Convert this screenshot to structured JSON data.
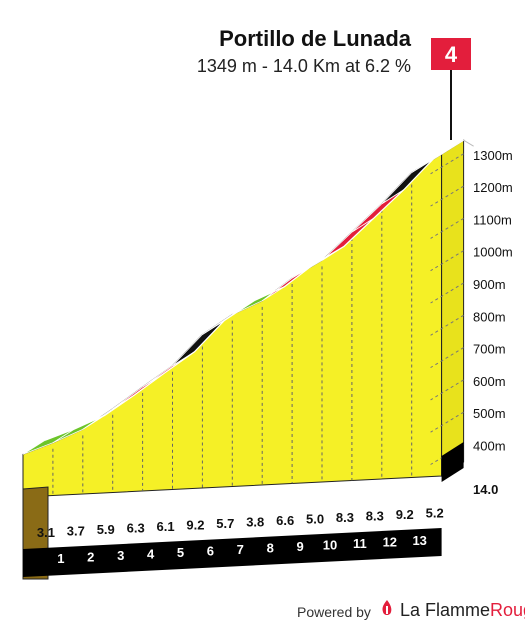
{
  "title": "Portillo de Lunada",
  "subtitle": "1349 m - 14.0 Km at 6.2 %",
  "climb_category": "4",
  "footer": {
    "powered_label": "Powered by",
    "brand_prefix": "La Flamme",
    "brand_suffix": "Rouge"
  },
  "colors": {
    "fill": "#f5f026",
    "base": "#000000",
    "cliff": "#8a6b16",
    "green": "#6cc52a",
    "blue": "#1f5d8c",
    "red": "#e31e3c",
    "black": "#111111"
  },
  "chart_data": {
    "type": "area",
    "title": "Portillo de Lunada",
    "xlabel": "",
    "ylabel": "",
    "km": [
      1,
      2,
      3,
      4,
      5,
      6,
      7,
      8,
      9,
      10,
      11,
      12,
      13
    ],
    "total_km_label": "14.0",
    "segments": [
      {
        "km": 1,
        "gradient": 3.1,
        "color": "green"
      },
      {
        "km": 2,
        "gradient": 3.7,
        "color": "green"
      },
      {
        "km": 3,
        "gradient": 5.9,
        "color": "blue"
      },
      {
        "km": 4,
        "gradient": 6.3,
        "color": "red"
      },
      {
        "km": 5,
        "gradient": 6.1,
        "color": "red"
      },
      {
        "km": 6,
        "gradient": 9.2,
        "color": "black"
      },
      {
        "km": 7,
        "gradient": 5.7,
        "color": "blue"
      },
      {
        "km": 8,
        "gradient": 3.8,
        "color": "green"
      },
      {
        "km": 9,
        "gradient": 6.6,
        "color": "red"
      },
      {
        "km": 10,
        "gradient": 5.0,
        "color": "blue"
      },
      {
        "km": 11,
        "gradient": 8.3,
        "color": "red"
      },
      {
        "km": 12,
        "gradient": 8.3,
        "color": "red"
      },
      {
        "km": 13,
        "gradient": 9.2,
        "color": "black"
      },
      {
        "km": 14,
        "gradient": 5.2,
        "color": "blue"
      }
    ],
    "gradient_labels": [
      "3.1",
      "3.7",
      "5.9",
      "6.3",
      "6.1",
      "9.2",
      "5.7",
      "3.8",
      "6.6",
      "5.0",
      "8.3",
      "8.3",
      "9.2",
      "5.2"
    ],
    "elevation_ticks": [
      "1300m",
      "1200m",
      "1100m",
      "1000m",
      "900m",
      "800m",
      "700m",
      "600m",
      "500m",
      "400m"
    ],
    "start_elevation": 478,
    "summit_elevation": 1349
  }
}
